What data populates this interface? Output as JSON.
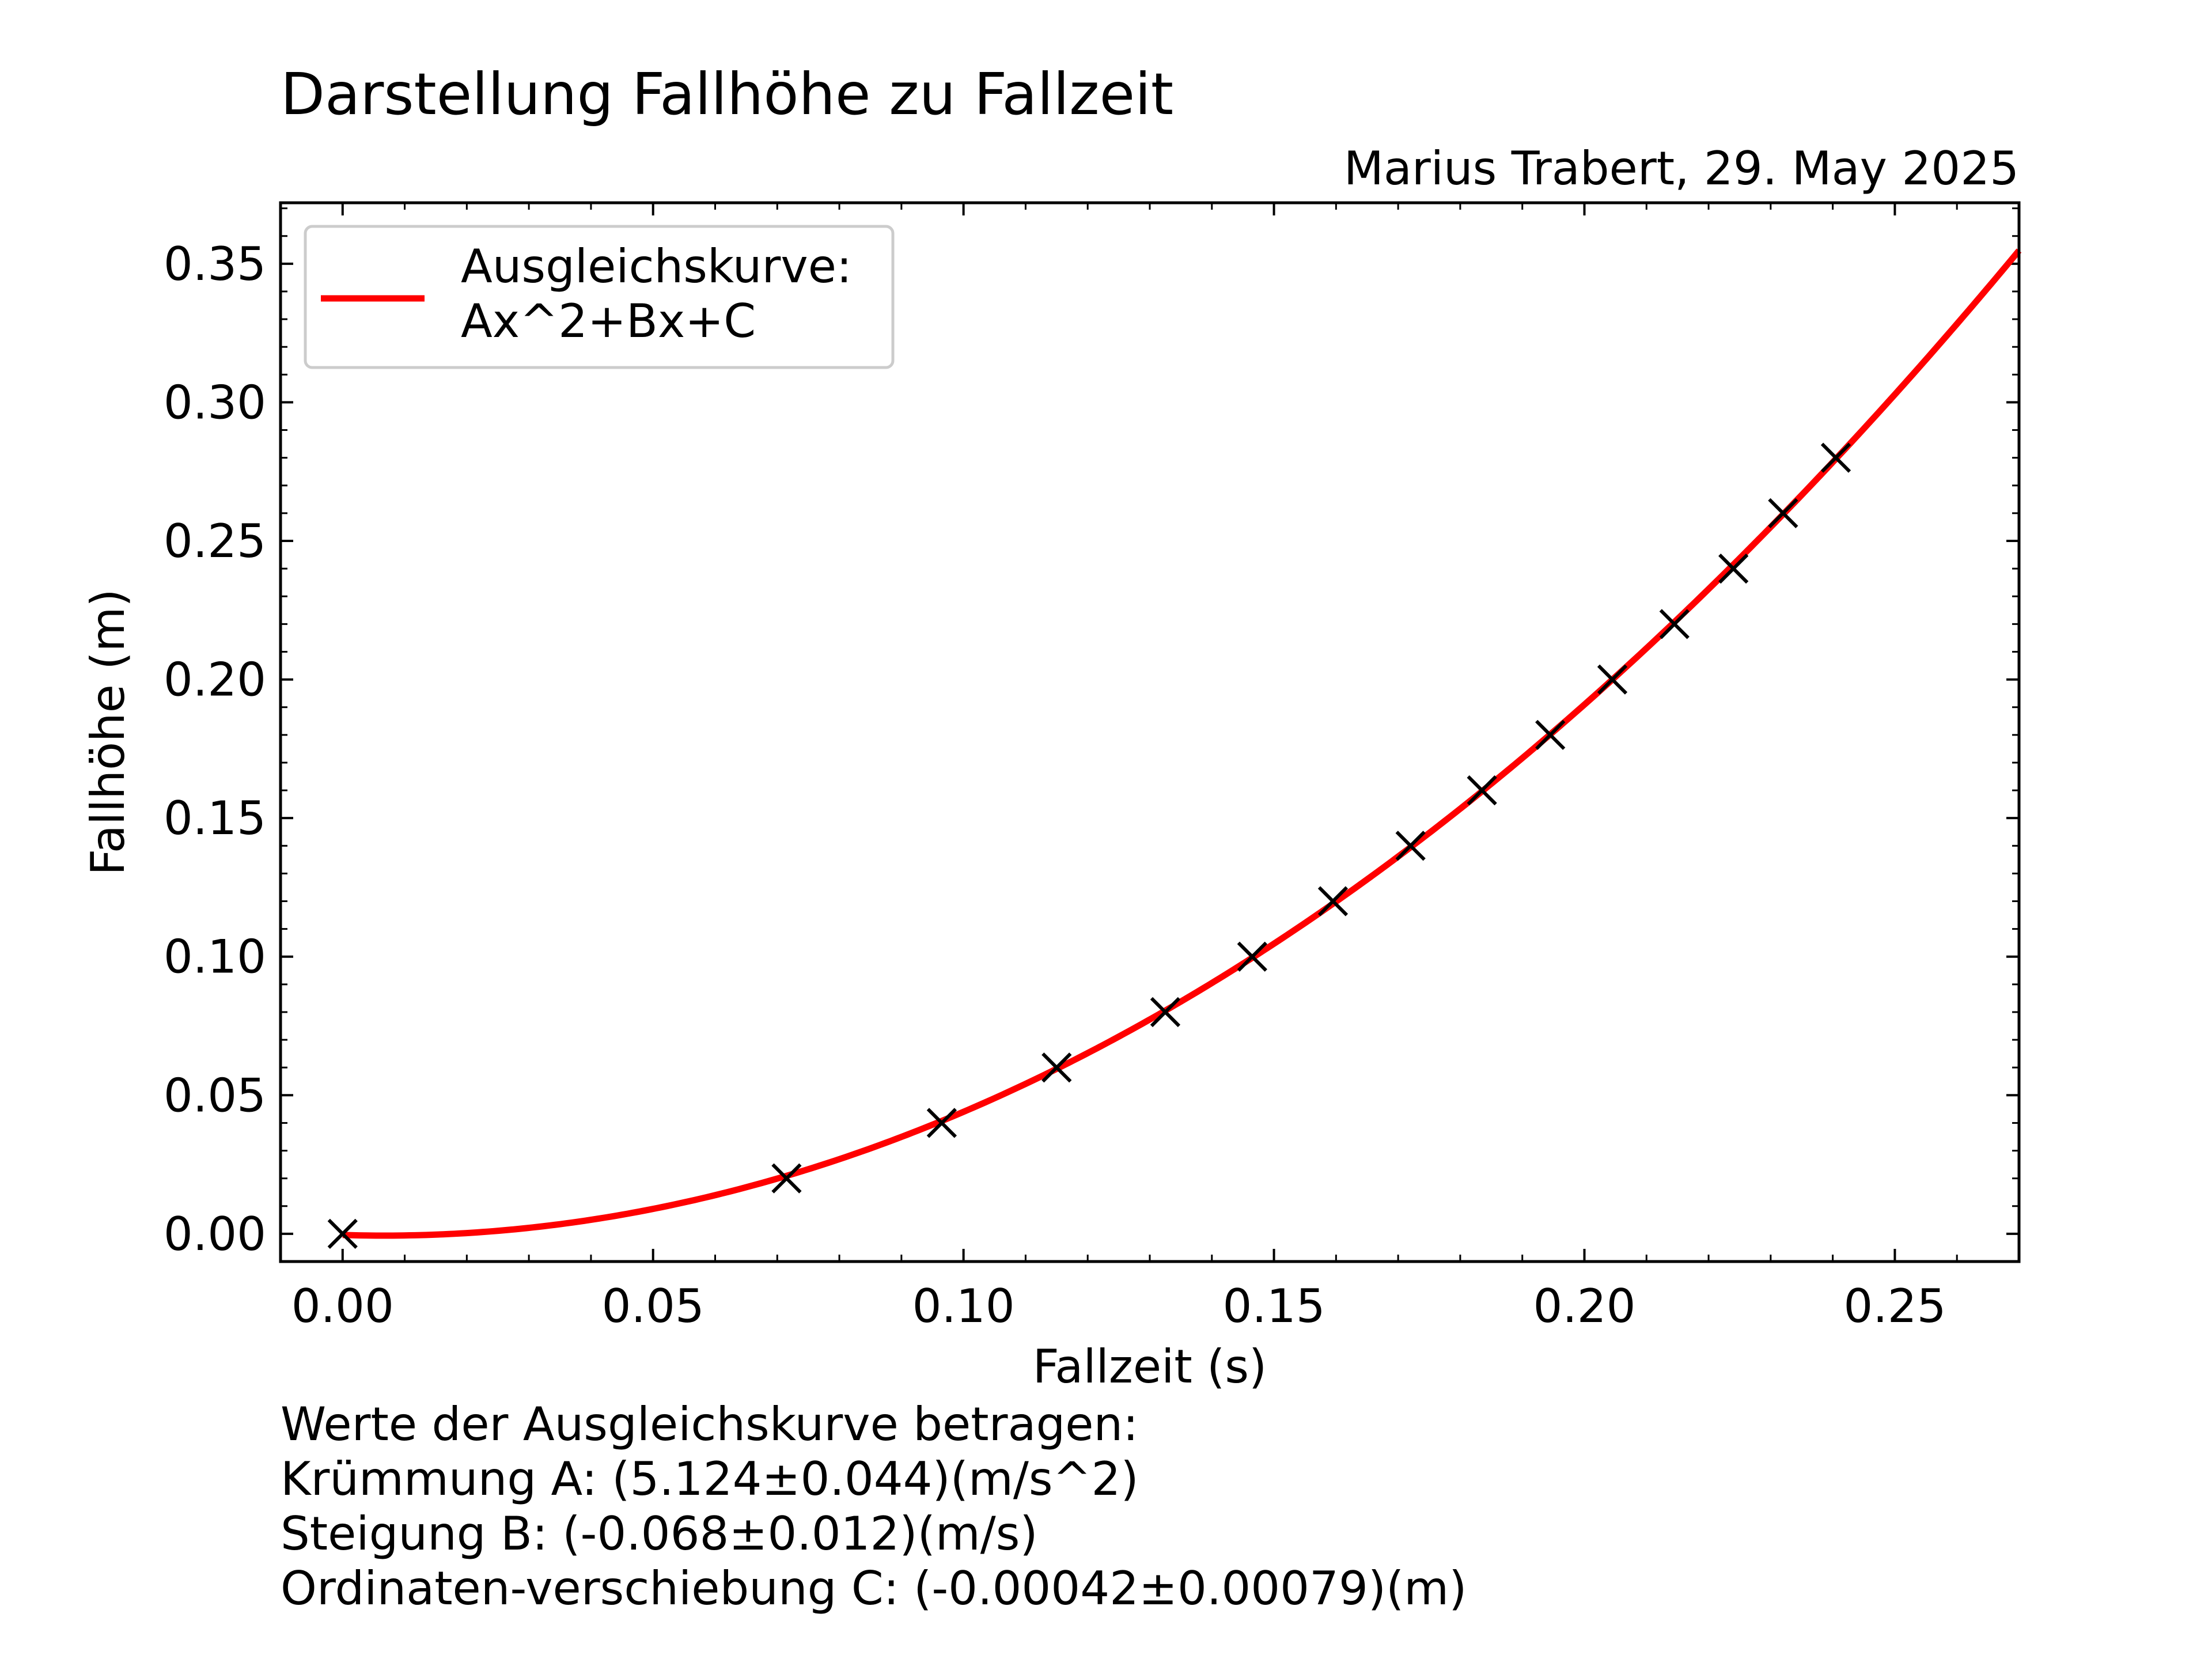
{
  "chart_data": {
    "type": "scatter",
    "title": "Darstellung Fallhöhe zu Fallzeit",
    "subtitle": "Marius Trabert, 29. May 2025",
    "xlabel": "Fallzeit (s)",
    "ylabel": "Fallhöhe (m)",
    "xlim": [
      -0.01,
      0.27
    ],
    "ylim": [
      -0.01,
      0.372
    ],
    "xticks": [
      "0.00",
      "0.05",
      "0.10",
      "0.15",
      "0.20",
      "0.25"
    ],
    "yticks": [
      "0.00",
      "0.05",
      "0.10",
      "0.15",
      "0.20",
      "0.25",
      "0.30",
      "0.35"
    ],
    "grid": false,
    "legend_position": "top-left",
    "series": [
      {
        "marker": "x",
        "color": "#000000",
        "x": [
          0.0,
          0.0715,
          0.0965,
          0.115,
          0.1325,
          0.1465,
          0.1595,
          0.172,
          0.1835,
          0.1945,
          0.2045,
          0.2145,
          0.224,
          0.232,
          0.2405
        ],
        "y": [
          0.0,
          0.02,
          0.04,
          0.06,
          0.08,
          0.1,
          0.12,
          0.14,
          0.16,
          0.18,
          0.2,
          0.22,
          0.24,
          0.26,
          0.28
        ]
      },
      {
        "name": "Ausgleichskurve:\nAx^2+Bx+C",
        "type": "line",
        "color": "#ff0000",
        "fit": {
          "A": 5.124,
          "B": -0.068,
          "C": -0.00042
        },
        "x_range": [
          0.0,
          0.27
        ]
      }
    ]
  },
  "legend": {
    "line1": "Ausgleichskurve:",
    "line2": "Ax^2+Bx+C"
  },
  "notes": [
    "Werte der Ausgleichskurve betragen:",
    "Krümmung A: (5.124±0.044)(m/s^2)",
    "Steigung B: (-0.068±0.012)(m/s)",
    "Ordinaten-verschiebung C: (-0.00042±0.00079)(m)"
  ]
}
